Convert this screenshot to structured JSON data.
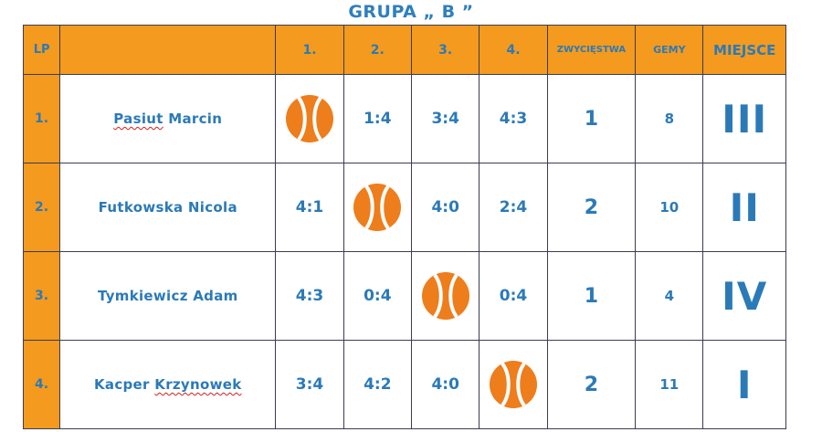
{
  "title": "GRUPA „ B ”",
  "headers": {
    "lp": "LP",
    "name": "",
    "c1": "1.",
    "c2": "2.",
    "c3": "3.",
    "c4": "4.",
    "wins": "ZWYCIĘSTWA",
    "gems": "GEMY",
    "place": "MIEJSCE"
  },
  "rows": [
    {
      "lp": "1.",
      "name_a": "Pasiut",
      "name_b": " Marcin",
      "scores": [
        "",
        "1:4",
        "3:4",
        "4:3"
      ],
      "wins": "1",
      "gems": "8",
      "place": "III"
    },
    {
      "lp": "2.",
      "name_a": "Futkowska Nicola",
      "name_b": "",
      "scores": [
        "4:1",
        "",
        "4:0",
        "2:4"
      ],
      "wins": "2",
      "gems": "10",
      "place": "II"
    },
    {
      "lp": "3.",
      "name_a": "Tymkiewicz Adam",
      "name_b": "",
      "scores": [
        "4:3",
        "0:4",
        "",
        "0:4"
      ],
      "wins": "1",
      "gems": "4",
      "place": "IV"
    },
    {
      "lp": "4.",
      "name_a": "Kacper ",
      "name_b": "Krzynowek",
      "scores": [
        "3:4",
        "4:2",
        "4:0",
        ""
      ],
      "wins": "2",
      "gems": "11",
      "place": "I"
    }
  ],
  "colors": {
    "header_fill": "#f39a1f",
    "text_blue": "#2b7ab8",
    "ball_orange": "#ee7d1c"
  },
  "icons": {
    "diagonal_cell": "tennis-ball-icon"
  }
}
